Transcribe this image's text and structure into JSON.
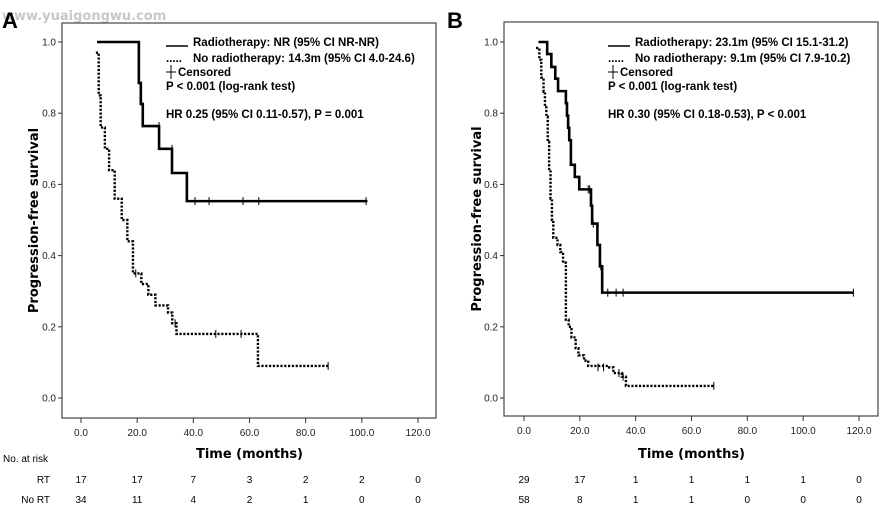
{
  "watermark": "www.yuaigongwu.com",
  "chart_data": [
    {
      "type": "line",
      "subtype": "kaplan-meier",
      "panel": "A",
      "title": "",
      "xlabel": "Time (months)",
      "ylabel": "Progression-free survival",
      "xlim": [
        0,
        120
      ],
      "ylim": [
        0,
        1
      ],
      "xticks": [
        "0.0",
        "20.0",
        "40.0",
        "60.0",
        "80.0",
        "100.0",
        "120.0"
      ],
      "yticks": [
        "0.0",
        "0.2",
        "0.4",
        "0.6",
        "0.8",
        "1.0"
      ],
      "grid": false,
      "legend": [
        {
          "symbol": "___",
          "text": "Radiotherapy: NR (95% CI NR-NR)"
        },
        {
          "symbol": ".....",
          "text": "No radiotherapy: 14.3m (95% CI 4.0-24.6)"
        },
        {
          "symbol": "+",
          "text": "Censored"
        },
        {
          "symbol": "",
          "text": "P < 0.001 (log-rank test)"
        },
        {
          "symbol": "",
          "text": "HR 0.25 (95% CI 0.11-0.57), P = 0.001"
        }
      ],
      "legend_position": "top-right",
      "series": [
        {
          "name": "Radiotherapy",
          "style": "solid",
          "steps": [
            [
              5.7,
              1.0
            ],
            [
              20.6,
              0.885
            ],
            [
              21.3,
              0.826
            ],
            [
              22.0,
              0.764
            ],
            [
              27.8,
              0.7
            ],
            [
              32.4,
              0.632
            ],
            [
              37.7,
              0.553
            ]
          ],
          "end": 102,
          "censored": [
            [
              27.8,
              0.764
            ],
            [
              32.4,
              0.7
            ],
            [
              40.6,
              0.553
            ],
            [
              45.6,
              0.553
            ],
            [
              57.7,
              0.553
            ],
            [
              63.3,
              0.553
            ],
            [
              101.5,
              0.553
            ]
          ]
        },
        {
          "name": "No radiotherapy",
          "style": "dotted",
          "steps": [
            [
              5.3,
              0.97
            ],
            [
              6.3,
              0.85
            ],
            [
              7.0,
              0.76
            ],
            [
              8.5,
              0.7
            ],
            [
              10.0,
              0.64
            ],
            [
              12.0,
              0.56
            ],
            [
              14.5,
              0.5
            ],
            [
              16.5,
              0.44
            ],
            [
              18.5,
              0.35
            ],
            [
              21.5,
              0.32
            ],
            [
              24.0,
              0.29
            ],
            [
              26.5,
              0.26
            ],
            [
              31.0,
              0.24
            ],
            [
              32.5,
              0.21
            ],
            [
              34.0,
              0.18
            ],
            [
              63.0,
              0.09
            ]
          ],
          "end": 88,
          "censored": [
            [
              19.5,
              0.35
            ],
            [
              33.5,
              0.21
            ],
            [
              48.0,
              0.18
            ],
            [
              57.0,
              0.18
            ],
            [
              88.0,
              0.09
            ]
          ]
        }
      ],
      "risk_table": {
        "header": "No. at risk",
        "rows": [
          {
            "label": "RT",
            "values": [
              "17",
              "17",
              "7",
              "3",
              "2",
              "2",
              "0"
            ]
          },
          {
            "label": "No RT",
            "values": [
              "34",
              "11",
              "4",
              "2",
              "1",
              "0",
              "0"
            ]
          }
        ]
      }
    },
    {
      "type": "line",
      "subtype": "kaplan-meier",
      "panel": "B",
      "title": "",
      "xlabel": "Time (months)",
      "ylabel": "Progression-free survival",
      "xlim": [
        0,
        120
      ],
      "ylim": [
        0,
        1
      ],
      "xticks": [
        "0.0",
        "20.0",
        "40.0",
        "60.0",
        "80.0",
        "100.0",
        "120.0"
      ],
      "yticks": [
        "0.0",
        "0.2",
        "0.4",
        "0.6",
        "0.8",
        "1.0"
      ],
      "grid": false,
      "legend": [
        {
          "symbol": "___",
          "text": "Radiotherapy: 23.1m (95% CI 15.1-31.2)"
        },
        {
          "symbol": ".....",
          "text": "No radiotherapy: 9.1m (95% CI 7.9-10.2)"
        },
        {
          "symbol": "+",
          "text": "Censored"
        },
        {
          "symbol": "",
          "text": "P < 0.001 (log-rank test)"
        },
        {
          "symbol": "",
          "text": "HR 0.30 (95% CI 0.18-0.53), P < 0.001"
        }
      ],
      "legend_position": "top-right",
      "series": [
        {
          "name": "Radiotherapy",
          "style": "solid",
          "steps": [
            [
              5.2,
              1.0
            ],
            [
              8.3,
              0.966
            ],
            [
              9.8,
              0.93
            ],
            [
              11.2,
              0.897
            ],
            [
              12.2,
              0.862
            ],
            [
              15.0,
              0.828
            ],
            [
              15.4,
              0.793
            ],
            [
              15.8,
              0.759
            ],
            [
              16.2,
              0.724
            ],
            [
              16.8,
              0.655
            ],
            [
              18.2,
              0.621
            ],
            [
              19.8,
              0.586
            ],
            [
              24.0,
              0.54
            ],
            [
              24.4,
              0.49
            ],
            [
              26.3,
              0.43
            ],
            [
              27.2,
              0.37
            ],
            [
              28.0,
              0.296
            ]
          ],
          "end": 118,
          "censored": [
            [
              23.0,
              0.586
            ],
            [
              23.5,
              0.586
            ],
            [
              24.2,
              0.54
            ],
            [
              24.8,
              0.49
            ],
            [
              27.5,
              0.37
            ],
            [
              30.0,
              0.296
            ],
            [
              33.0,
              0.296
            ],
            [
              35.5,
              0.296
            ],
            [
              118.0,
              0.296
            ]
          ]
        },
        {
          "name": "No radiotherapy",
          "style": "dotted",
          "steps": [
            [
              4.3,
              0.983
            ],
            [
              5.5,
              0.95
            ],
            [
              6.2,
              0.9
            ],
            [
              7.0,
              0.86
            ],
            [
              7.5,
              0.82
            ],
            [
              8.0,
              0.79
            ],
            [
              8.5,
              0.72
            ],
            [
              9.0,
              0.64
            ],
            [
              9.5,
              0.56
            ],
            [
              10.0,
              0.5
            ],
            [
              10.5,
              0.45
            ],
            [
              12.0,
              0.43
            ],
            [
              13.0,
              0.41
            ],
            [
              14.0,
              0.38
            ],
            [
              15.0,
              0.22
            ],
            [
              16.0,
              0.2
            ],
            [
              17.0,
              0.17
            ],
            [
              18.5,
              0.14
            ],
            [
              19.5,
              0.12
            ],
            [
              21.5,
              0.105
            ],
            [
              23.0,
              0.09
            ],
            [
              30.5,
              0.086
            ],
            [
              32.0,
              0.07
            ],
            [
              35.0,
              0.06
            ],
            [
              36.5,
              0.034
            ]
          ],
          "end": 68,
          "censored": [
            [
              26.5,
              0.086
            ],
            [
              28.5,
              0.086
            ],
            [
              34.0,
              0.07
            ],
            [
              35.5,
              0.06
            ],
            [
              68.0,
              0.034
            ]
          ]
        }
      ],
      "risk_table": {
        "header": "",
        "rows": [
          {
            "label": "",
            "values": [
              "29",
              "17",
              "1",
              "1",
              "1",
              "1",
              "0"
            ]
          },
          {
            "label": "",
            "values": [
              "58",
              "8",
              "1",
              "1",
              "0",
              "0",
              "0"
            ]
          }
        ]
      }
    }
  ]
}
